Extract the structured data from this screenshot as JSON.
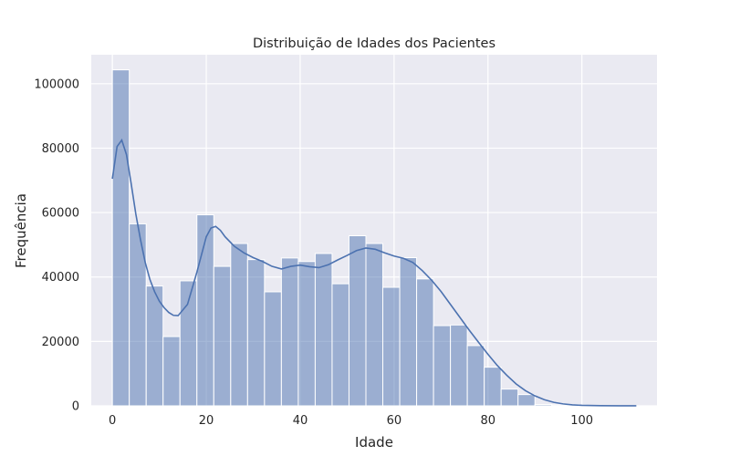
{
  "chart_data": {
    "type": "bar",
    "title": "Distribuição de Idades dos Pacientes",
    "xlabel": "Idade",
    "ylabel": "Frequência",
    "xlim": [
      -4.5,
      116
    ],
    "ylim": [
      0,
      109000
    ],
    "x_ticks": [
      0,
      20,
      40,
      60,
      80,
      100
    ],
    "y_ticks": [
      0,
      20000,
      40000,
      60000,
      80000,
      100000
    ],
    "grid": true,
    "bin_edges": [
      0,
      3.6,
      7.2,
      10.8,
      14.4,
      18.0,
      21.6,
      25.2,
      28.8,
      32.4,
      36.0,
      39.6,
      43.2,
      46.8,
      50.4,
      54.0,
      57.6,
      61.2,
      64.8,
      68.4,
      72.0,
      75.6,
      79.2,
      82.8,
      86.4,
      90.0,
      93.6,
      97.2,
      100.8,
      104.4,
      108.0,
      111.6
    ],
    "values": [
      104300,
      56500,
      37200,
      21500,
      38800,
      59300,
      43300,
      50400,
      45400,
      35400,
      45900,
      44800,
      47300,
      37900,
      52800,
      50400,
      36800,
      46000,
      39400,
      24900,
      25100,
      18700,
      12000,
      5200,
      3500,
      400,
      300,
      200,
      150,
      100,
      80
    ],
    "kde": {
      "x": [
        0,
        1,
        2,
        3,
        4,
        5,
        6,
        7,
        8,
        9,
        10,
        11,
        12,
        13,
        14,
        16,
        18,
        20,
        21,
        22,
        23,
        24,
        26,
        28,
        30,
        32,
        34,
        36,
        38,
        40,
        42,
        44,
        46,
        48,
        50,
        52,
        54,
        56,
        58,
        60,
        62,
        64,
        66,
        68,
        70,
        72,
        74,
        76,
        78,
        80,
        82,
        84,
        86,
        88,
        90,
        92,
        94,
        96,
        98,
        100,
        104,
        108,
        111.6
      ],
      "y": [
        70500,
        80500,
        82500,
        78000,
        69000,
        59500,
        51500,
        44500,
        39200,
        35400,
        32500,
        30500,
        29000,
        28100,
        28000,
        31500,
        41500,
        52500,
        55200,
        55700,
        54500,
        52500,
        49500,
        47500,
        46000,
        44800,
        43300,
        42500,
        43300,
        43700,
        43200,
        42900,
        43800,
        45300,
        46700,
        48200,
        49000,
        48600,
        47500,
        46500,
        45800,
        44500,
        42000,
        39000,
        35500,
        31500,
        27500,
        23500,
        19700,
        16000,
        12500,
        9500,
        6800,
        4700,
        3100,
        1900,
        1100,
        600,
        300,
        150,
        60,
        30,
        20
      ]
    },
    "colors": {
      "bar_fill": "#4c72b0",
      "bar_opacity": 0.5,
      "bar_edge": "#ffffff",
      "kde_line": "#4c72b0",
      "plot_background": "#eaeaf2",
      "grid": "#ffffff"
    }
  }
}
